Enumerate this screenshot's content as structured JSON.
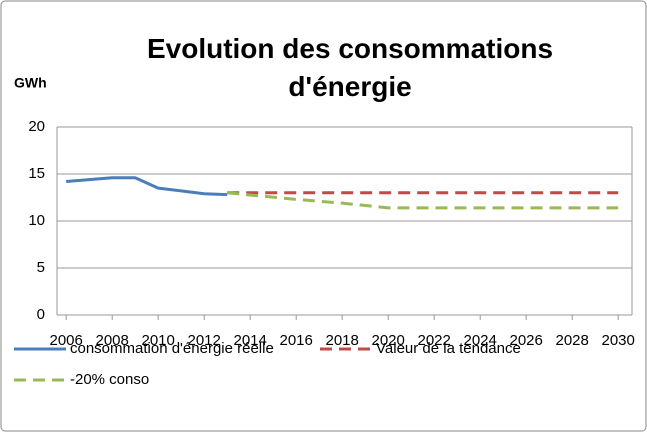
{
  "chart_data": {
    "type": "line",
    "title": "Evolution des consommations d'énergie",
    "y_label": "GWh",
    "xlim": [
      2005.6,
      2030.6
    ],
    "xticks": [
      2006,
      2008,
      2010,
      2012,
      2014,
      2016,
      2018,
      2020,
      2022,
      2024,
      2026,
      2028,
      2030
    ],
    "ylim": [
      0,
      20
    ],
    "yticks": [
      0,
      5,
      10,
      15,
      20
    ],
    "grid": true,
    "series": [
      {
        "name": "consommation d'énergie réelle",
        "color": "#4a7ebb",
        "dash": false,
        "x": [
          2006,
          2007,
          2008,
          2009,
          2010,
          2011,
          2012,
          2013
        ],
        "values": [
          14.2,
          14.4,
          14.6,
          14.6,
          13.5,
          13.2,
          12.9,
          12.8
        ]
      },
      {
        "name": "Valeur de la tendance",
        "color": "#be4b48",
        "dash": true,
        "x": [
          2013,
          2030
        ],
        "values": [
          13.0,
          13.0
        ]
      },
      {
        "name": "-20% conso",
        "color": "#98b954",
        "dash": true,
        "x": [
          2013,
          2016,
          2018,
          2020,
          2030
        ],
        "values": [
          13.0,
          12.3,
          11.9,
          11.4,
          11.4
        ]
      }
    ]
  }
}
